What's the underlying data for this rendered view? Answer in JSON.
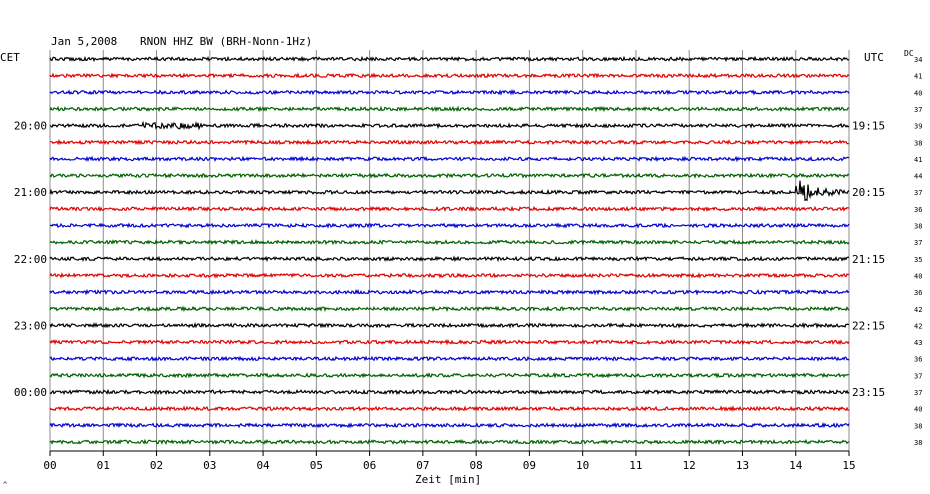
{
  "header": {
    "date": "Jan 5,2008",
    "station": "RNON HHZ BW (BRH-Nonn-1Hz)"
  },
  "labels": {
    "left_timezone": "CET",
    "right_timezone": "UTC",
    "dc": "DC",
    "x_axis_title": "Zeit [min]",
    "corner_mark": "^"
  },
  "chart_data": {
    "type": "line",
    "title": "Jan 5,2008  RNON HHZ BW (BRH-Nonn-1Hz)",
    "xlabel": "Zeit [min]",
    "xlim": [
      0,
      15
    ],
    "x_ticks": [
      "00",
      "01",
      "02",
      "03",
      "04",
      "05",
      "06",
      "07",
      "08",
      "09",
      "10",
      "11",
      "12",
      "13",
      "14",
      "15"
    ],
    "left_time_labels": [
      {
        "row": 4,
        "label": "20:00"
      },
      {
        "row": 8,
        "label": "21:00"
      },
      {
        "row": 12,
        "label": "22:00"
      },
      {
        "row": 16,
        "label": "23:00"
      },
      {
        "row": 20,
        "label": "00:00"
      }
    ],
    "right_time_labels": [
      {
        "row": 4,
        "label": "19:15"
      },
      {
        "row": 8,
        "label": "20:15"
      },
      {
        "row": 12,
        "label": "21:15"
      },
      {
        "row": 16,
        "label": "22:15"
      },
      {
        "row": 20,
        "label": "23:15"
      }
    ],
    "dc_values": [
      "34",
      "41",
      "40",
      "37",
      "39",
      "38",
      "41",
      "44",
      "37",
      "36",
      "38",
      "37",
      "35",
      "40",
      "36",
      "42",
      "42",
      "43",
      "36",
      "37",
      "37",
      "40",
      "38",
      "38"
    ],
    "trace_colors": [
      "#000000",
      "#e00000",
      "#0000d0",
      "#006000"
    ],
    "events": [
      {
        "row": 8,
        "start_min": 14.0,
        "end_min": 15.0,
        "description": "earthquake signal"
      },
      {
        "row": 4,
        "start_min": 1.7,
        "end_min": 2.8,
        "description": "noise burst"
      }
    ]
  }
}
